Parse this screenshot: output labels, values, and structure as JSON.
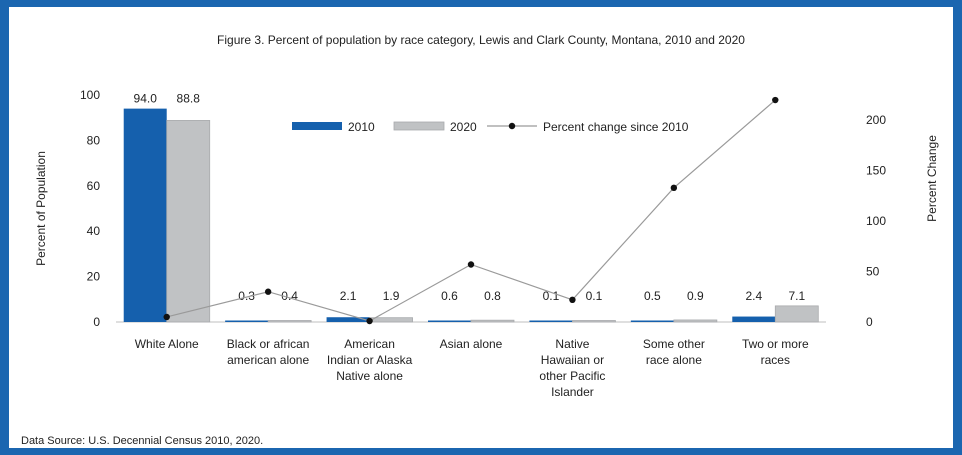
{
  "figure_title": "Figure 3. Percent of population by race category, Lewis and Clark County, Montana, 2010 and 2020",
  "source_note": "Data Source: U.S. Decennial  Census 2010, 2020.",
  "colors": {
    "s2010": "#1560ad",
    "s2020": "#c0c2c4",
    "line": "#9a9a9a",
    "marker": "#111111",
    "frame": "#1b66b0"
  },
  "chart_data": {
    "type": "bar",
    "categories": [
      "White Alone",
      "Black or african american alone",
      "American Indian or Alaska Native alone",
      "Asian alone",
      "Native Hawaiian or other Pacific Islander",
      "Some other race alone",
      "Two or more races"
    ],
    "category_lines": [
      [
        "White Alone"
      ],
      [
        "Black or african",
        "american alone"
      ],
      [
        "American",
        "Indian or Alaska",
        "Native alone"
      ],
      [
        "Asian alone"
      ],
      [
        "Native",
        "Hawaiian or",
        "other Pacific",
        "Islander"
      ],
      [
        "Some other",
        "race alone"
      ],
      [
        "Two or more",
        "races"
      ]
    ],
    "series": [
      {
        "name": "2010",
        "values": [
          94.0,
          0.3,
          2.1,
          0.6,
          0.1,
          0.5,
          2.4
        ],
        "labels": [
          "94.0",
          "0.3",
          "2.1",
          "0.6",
          "0.1",
          "0.5",
          "2.4"
        ]
      },
      {
        "name": "2020",
        "values": [
          88.8,
          0.4,
          1.9,
          0.8,
          0.1,
          0.9,
          7.1
        ],
        "labels": [
          "88.8",
          "0.4",
          "1.9",
          "0.8",
          "0.1",
          "0.9",
          "7.1"
        ]
      }
    ],
    "line_series": {
      "name": "Percent change since 2010",
      "axis": "right",
      "values": [
        5,
        30,
        1,
        57,
        22,
        133,
        220
      ]
    },
    "ylabel": "Percent of Population",
    "y2label": "Percent Change",
    "ylim": [
      0,
      100
    ],
    "y2lim": [
      0,
      225
    ],
    "yticks": [
      0,
      20,
      40,
      60,
      80,
      100
    ],
    "y2ticks": [
      0,
      50,
      100,
      150,
      200
    ],
    "legend_position": "top-center",
    "grid": false
  }
}
